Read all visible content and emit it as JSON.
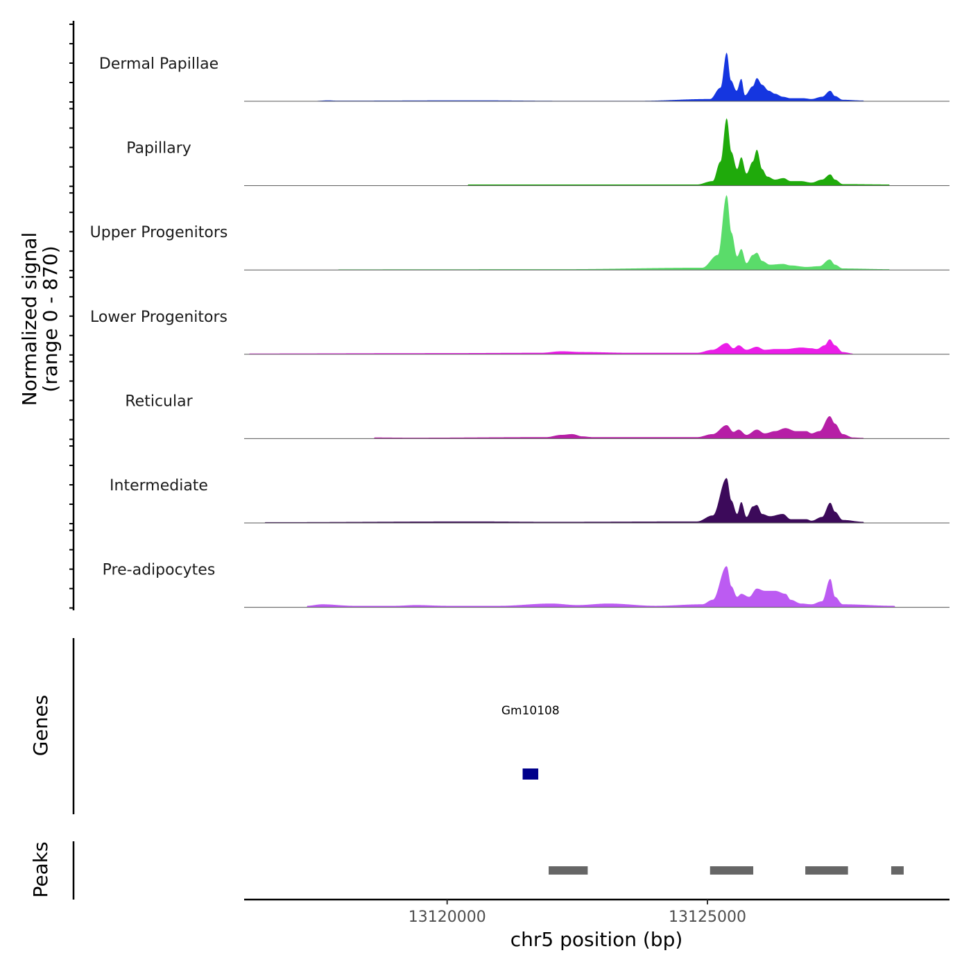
{
  "chart_data": {
    "type": "area",
    "title": "",
    "region": {
      "chromosome": "chr5",
      "start": 13116100,
      "end": 13129650
    },
    "xlabel": "chr5 position (bp)",
    "x_ticks": [
      13120000,
      13125000
    ],
    "x_tick_labels": [
      "13120000",
      "13125000"
    ],
    "ylabel_line1": "Normalized signal",
    "ylabel_line2": "(range 0 - 870)",
    "ylim": [
      0,
      870
    ],
    "series": [
      {
        "name": "Dermal Papillae",
        "color": "#1536E0",
        "profile": [
          [
            13117500,
            0.6
          ],
          [
            13117700,
            1.2
          ],
          [
            13117900,
            0.8
          ],
          [
            13120500,
            1.2
          ],
          [
            13122300,
            0.6
          ],
          [
            13123700,
            0.6
          ],
          [
            13125050,
            3
          ],
          [
            13125250,
            18
          ],
          [
            13125370,
            65
          ],
          [
            13125450,
            28
          ],
          [
            13125560,
            14
          ],
          [
            13125650,
            30
          ],
          [
            13125720,
            8
          ],
          [
            13125870,
            20
          ],
          [
            13125950,
            31
          ],
          [
            13126050,
            22
          ],
          [
            13126180,
            14
          ],
          [
            13126300,
            10
          ],
          [
            13126450,
            6
          ],
          [
            13126600,
            4
          ],
          [
            13126850,
            4
          ],
          [
            13127000,
            3
          ],
          [
            13127200,
            6
          ],
          [
            13127360,
            14
          ],
          [
            13127450,
            7
          ],
          [
            13127600,
            2
          ],
          [
            13128000,
            1
          ]
        ]
      },
      {
        "name": "Papillary",
        "color": "#1FAA0B",
        "profile": [
          [
            13120400,
            1.5
          ],
          [
            13124800,
            1.5
          ],
          [
            13125100,
            6
          ],
          [
            13125250,
            32
          ],
          [
            13125370,
            90
          ],
          [
            13125460,
            45
          ],
          [
            13125570,
            22
          ],
          [
            13125650,
            38
          ],
          [
            13125750,
            16
          ],
          [
            13125870,
            32
          ],
          [
            13125950,
            48
          ],
          [
            13126050,
            22
          ],
          [
            13126150,
            12
          ],
          [
            13126300,
            8
          ],
          [
            13126460,
            10
          ],
          [
            13126600,
            6
          ],
          [
            13126800,
            6
          ],
          [
            13127000,
            4
          ],
          [
            13127200,
            8
          ],
          [
            13127360,
            15
          ],
          [
            13127450,
            8
          ],
          [
            13127600,
            2
          ],
          [
            13128500,
            1.5
          ]
        ]
      },
      {
        "name": "Upper Progenitors",
        "color": "#5ADC6A",
        "profile": [
          [
            13117900,
            0.8
          ],
          [
            13122200,
            1
          ],
          [
            13124900,
            3
          ],
          [
            13125200,
            20
          ],
          [
            13125370,
            100
          ],
          [
            13125460,
            50
          ],
          [
            13125570,
            18
          ],
          [
            13125650,
            28
          ],
          [
            13125750,
            9
          ],
          [
            13125870,
            20
          ],
          [
            13125950,
            23
          ],
          [
            13126050,
            12
          ],
          [
            13126200,
            7
          ],
          [
            13126450,
            8
          ],
          [
            13126600,
            6
          ],
          [
            13126900,
            4
          ],
          [
            13127150,
            5
          ],
          [
            13127350,
            14
          ],
          [
            13127450,
            7
          ],
          [
            13127600,
            2
          ],
          [
            13128500,
            1
          ]
        ]
      },
      {
        "name": "Lower Progenitors",
        "color": "#EB1DE8",
        "profile": [
          [
            13116200,
            1
          ],
          [
            13119800,
            1.5
          ],
          [
            13121800,
            2
          ],
          [
            13122200,
            4
          ],
          [
            13122600,
            3
          ],
          [
            13123500,
            2
          ],
          [
            13124800,
            2
          ],
          [
            13125100,
            6
          ],
          [
            13125370,
            15
          ],
          [
            13125500,
            8
          ],
          [
            13125600,
            12
          ],
          [
            13125750,
            6
          ],
          [
            13125950,
            10
          ],
          [
            13126100,
            6
          ],
          [
            13126300,
            7
          ],
          [
            13126500,
            7
          ],
          [
            13126800,
            9
          ],
          [
            13127000,
            8
          ],
          [
            13127100,
            7
          ],
          [
            13127250,
            12
          ],
          [
            13127350,
            20
          ],
          [
            13127450,
            12
          ],
          [
            13127600,
            3
          ],
          [
            13127800,
            1
          ]
        ]
      },
      {
        "name": "Reticular",
        "color": "#B61FA6",
        "profile": [
          [
            13118600,
            1.5
          ],
          [
            13119300,
            1.2
          ],
          [
            13121900,
            2
          ],
          [
            13122200,
            5
          ],
          [
            13122400,
            6
          ],
          [
            13122600,
            3
          ],
          [
            13122800,
            2
          ],
          [
            13124800,
            2
          ],
          [
            13125100,
            6
          ],
          [
            13125370,
            18
          ],
          [
            13125500,
            9
          ],
          [
            13125600,
            12
          ],
          [
            13125750,
            5
          ],
          [
            13125950,
            12
          ],
          [
            13126100,
            7
          ],
          [
            13126300,
            10
          ],
          [
            13126500,
            14
          ],
          [
            13126700,
            10
          ],
          [
            13126900,
            10
          ],
          [
            13127000,
            7
          ],
          [
            13127150,
            10
          ],
          [
            13127350,
            30
          ],
          [
            13127450,
            20
          ],
          [
            13127600,
            6
          ],
          [
            13127800,
            1.5
          ],
          [
            13128000,
            1
          ]
        ]
      },
      {
        "name": "Intermediate",
        "color": "#3C0A5A",
        "profile": [
          [
            13116500,
            1
          ],
          [
            13120500,
            2
          ],
          [
            13122000,
            1.5
          ],
          [
            13124800,
            2
          ],
          [
            13125100,
            10
          ],
          [
            13125370,
            60
          ],
          [
            13125460,
            30
          ],
          [
            13125570,
            12
          ],
          [
            13125650,
            28
          ],
          [
            13125750,
            8
          ],
          [
            13125870,
            22
          ],
          [
            13125950,
            24
          ],
          [
            13126050,
            12
          ],
          [
            13126200,
            9
          ],
          [
            13126450,
            12
          ],
          [
            13126600,
            5
          ],
          [
            13126900,
            5
          ],
          [
            13127000,
            3
          ],
          [
            13127200,
            8
          ],
          [
            13127360,
            27
          ],
          [
            13127450,
            15
          ],
          [
            13127600,
            4
          ],
          [
            13128000,
            1.5
          ]
        ]
      },
      {
        "name": "Pre-adipocytes",
        "color": "#BC5BF2",
        "profile": [
          [
            13117300,
            2
          ],
          [
            13117600,
            4
          ],
          [
            13118200,
            2
          ],
          [
            13119000,
            2
          ],
          [
            13119400,
            3
          ],
          [
            13120000,
            2
          ],
          [
            13121000,
            2
          ],
          [
            13122000,
            5
          ],
          [
            13122500,
            3
          ],
          [
            13123100,
            5
          ],
          [
            13124000,
            2
          ],
          [
            13124900,
            4
          ],
          [
            13125100,
            10
          ],
          [
            13125370,
            55
          ],
          [
            13125460,
            28
          ],
          [
            13125570,
            14
          ],
          [
            13125650,
            18
          ],
          [
            13125800,
            14
          ],
          [
            13125950,
            25
          ],
          [
            13126100,
            22
          ],
          [
            13126300,
            22
          ],
          [
            13126500,
            18
          ],
          [
            13126600,
            10
          ],
          [
            13126800,
            5
          ],
          [
            13127000,
            4
          ],
          [
            13127200,
            8
          ],
          [
            13127360,
            38
          ],
          [
            13127450,
            14
          ],
          [
            13127600,
            4
          ],
          [
            13128600,
            2
          ]
        ]
      }
    ],
    "genes": [
      {
        "name": "Gm10108",
        "start": 13121450,
        "end": 13121750,
        "color": "#00008B"
      }
    ],
    "gene_track_label": "Genes",
    "peaks": [
      {
        "start": 13121950,
        "end": 13122700
      },
      {
        "start": 13125050,
        "end": 13125880
      },
      {
        "start": 13126880,
        "end": 13127700
      },
      {
        "start": 13128530,
        "end": 13128770
      }
    ],
    "peak_color": "#666666",
    "peak_track_label": "Peaks"
  }
}
